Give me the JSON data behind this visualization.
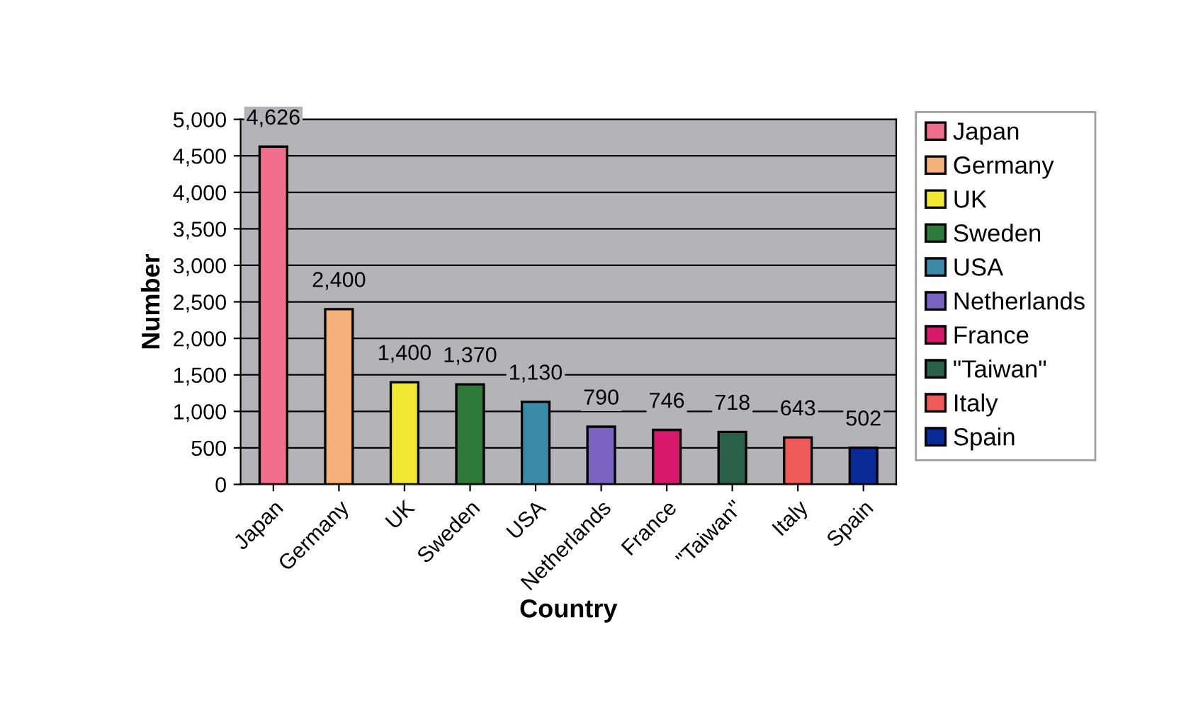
{
  "chart_data": {
    "type": "bar",
    "xlabel": "Country",
    "ylabel": "Number",
    "categories": [
      "Japan",
      "Germany",
      "UK",
      "Sweden",
      "USA",
      "Netherlands",
      "France",
      "\"Taiwan\"",
      "Italy",
      "Spain"
    ],
    "series": [
      {
        "name": "Japan",
        "color": "#f06e8c",
        "values": [
          4626,
          null,
          null,
          null,
          null,
          null,
          null,
          null,
          null,
          null
        ],
        "value_labels": [
          "4,626",
          null,
          null,
          null,
          null,
          null,
          null,
          null,
          null,
          null
        ]
      },
      {
        "name": "Germany",
        "color": "#f5b27a",
        "values": [
          null,
          2400,
          null,
          null,
          null,
          null,
          null,
          null,
          null,
          null
        ],
        "value_labels": [
          null,
          "2,400",
          null,
          null,
          null,
          null,
          null,
          null,
          null,
          null
        ]
      },
      {
        "name": "UK",
        "color": "#f2e832",
        "values": [
          null,
          null,
          1400,
          null,
          null,
          null,
          null,
          null,
          null,
          null
        ],
        "value_labels": [
          null,
          null,
          "1,400",
          null,
          null,
          null,
          null,
          null,
          null,
          null
        ]
      },
      {
        "name": "Sweden",
        "color": "#2e7a3a",
        "values": [
          null,
          null,
          null,
          1370,
          null,
          null,
          null,
          null,
          null,
          null
        ],
        "value_labels": [
          null,
          null,
          null,
          "1,370",
          null,
          null,
          null,
          null,
          null,
          null
        ]
      },
      {
        "name": "USA",
        "color": "#3a8aa8",
        "values": [
          null,
          null,
          null,
          null,
          1130,
          null,
          null,
          null,
          null,
          null
        ],
        "value_labels": [
          null,
          null,
          null,
          null,
          "1,130",
          null,
          null,
          null,
          null,
          null
        ]
      },
      {
        "name": "Netherlands",
        "color": "#7a62c0",
        "values": [
          null,
          null,
          null,
          null,
          null,
          790,
          null,
          null,
          null,
          null
        ],
        "value_labels": [
          null,
          null,
          null,
          null,
          null,
          "790",
          null,
          null,
          null,
          null
        ]
      },
      {
        "name": "France",
        "color": "#d8186a",
        "values": [
          null,
          null,
          null,
          null,
          null,
          null,
          746,
          null,
          null,
          null
        ],
        "value_labels": [
          null,
          null,
          null,
          null,
          null,
          null,
          "746",
          null,
          null,
          null
        ]
      },
      {
        "name": "\"Taiwan\"",
        "color": "#2a6048",
        "values": [
          null,
          null,
          null,
          null,
          null,
          null,
          null,
          718,
          null,
          null
        ],
        "value_labels": [
          null,
          null,
          null,
          null,
          null,
          null,
          null,
          "718",
          null,
          null
        ]
      },
      {
        "name": "Italy",
        "color": "#ee5a58",
        "values": [
          null,
          null,
          null,
          null,
          null,
          null,
          null,
          null,
          643,
          null
        ],
        "value_labels": [
          null,
          null,
          null,
          null,
          null,
          null,
          null,
          null,
          "643",
          null
        ]
      },
      {
        "name": "Spain",
        "color": "#0a2a98",
        "values": [
          null,
          null,
          null,
          null,
          null,
          null,
          null,
          null,
          null,
          502
        ],
        "value_labels": [
          null,
          null,
          null,
          null,
          null,
          null,
          null,
          null,
          null,
          "502"
        ]
      }
    ],
    "ylim": [
      0,
      5000
    ],
    "yticks": [
      {
        "value": 0,
        "label": "0"
      },
      {
        "value": 500,
        "label": "500"
      },
      {
        "value": 1000,
        "label": "1,000"
      },
      {
        "value": 1500,
        "label": "1,500"
      },
      {
        "value": 2000,
        "label": "2,000"
      },
      {
        "value": 2500,
        "label": "2,500"
      },
      {
        "value": 3000,
        "label": "3,000"
      },
      {
        "value": 3500,
        "label": "3,500"
      },
      {
        "value": 4000,
        "label": "4,000"
      },
      {
        "value": 4500,
        "label": "4,500"
      },
      {
        "value": 5000,
        "label": "5,000"
      }
    ],
    "grid": "y",
    "legend": "right"
  }
}
